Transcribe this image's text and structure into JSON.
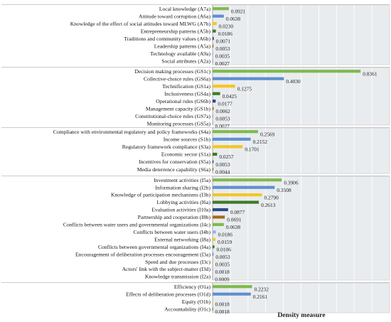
{
  "chart_data": {
    "type": "bar",
    "orientation": "horizontal",
    "xlabel": "Density measure",
    "xlim": [
      0,
      1
    ],
    "grid": true,
    "group_panels": [
      {
        "items": [
          {
            "label": "Local knowledge (A7a)",
            "value": 0.0921,
            "value_label": "0.0921",
            "color": "#7fba4e"
          },
          {
            "label": "Attitude toward corruption (A6a)",
            "value": 0.0638,
            "value_label": "0.0638",
            "color": "#5f8fd0"
          },
          {
            "label": "Knowledge of the effect of social attitudes toward MLWG (A7b)",
            "value": 0.023,
            "value_label": "0.0230",
            "color": "#f3c623"
          },
          {
            "label": "Entrepreneurship patterns (A5b)",
            "value": 0.0186,
            "value_label": "0.0186",
            "color": "#3e7b26"
          },
          {
            "label": "Traditions and community values (A6b)",
            "value": 0.0071,
            "value_label": "0.0071",
            "color": "#2b4a86"
          },
          {
            "label": "Leadership patterns (A5a)",
            "value": 0.0053,
            "value_label": "0.0053",
            "color": "#a76a1e"
          },
          {
            "label": "Technology available (A9a)",
            "value": 0.0035,
            "value_label": "0.0035",
            "color": "#b5b5b5"
          },
          {
            "label": "Social attributes (A2a)",
            "value": 0.0027,
            "value_label": "0.0027",
            "color": "#8fb3de"
          }
        ]
      },
      {
        "items": [
          {
            "label": "Decision making processes (GS1c)",
            "value": 0.8361,
            "value_label": "0.8361",
            "color": "#7fba4e"
          },
          {
            "label": "Collective-choice rules (GS6a)",
            "value": 0.403,
            "value_label": "0.4030",
            "color": "#5f8fd0"
          },
          {
            "label": "Technification (GS1a)",
            "value": 0.1275,
            "value_label": "0.1275",
            "color": "#f3c623"
          },
          {
            "label": "Inclusiveness (GS4a)",
            "value": 0.0425,
            "value_label": "0.0425",
            "color": "#3e7b26"
          },
          {
            "label": "Operational rules (GS6b)",
            "value": 0.0177,
            "value_label": "0.0177",
            "color": "#2b4a86"
          },
          {
            "label": "Management capacity (GS1b)",
            "value": 0.0062,
            "value_label": "0.0062",
            "color": "#a76a1e"
          },
          {
            "label": "Constitutional-choice rules (GS7a)",
            "value": 0.0053,
            "value_label": "0.0053",
            "color": "#b5b5b5"
          },
          {
            "label": "Monitoring processes (GS5a)",
            "value": 0.0027,
            "value_label": "0.0027",
            "color": "#8fb3de"
          }
        ]
      },
      {
        "items": [
          {
            "label": "Compliance with environmental regulatory and policy frameworks (S4a)",
            "value": 0.2569,
            "value_label": "0.2569",
            "color": "#7fba4e"
          },
          {
            "label": "Income sources (S1b)",
            "value": 0.2152,
            "value_label": "0.2152",
            "color": "#5f8fd0"
          },
          {
            "label": "Regulatory framework compliance (S3a)",
            "value": 0.1701,
            "value_label": "0.1701",
            "color": "#f3c623"
          },
          {
            "label": "Economic sector (S1a)",
            "value": 0.0257,
            "value_label": "0.0257",
            "color": "#3e7b26"
          },
          {
            "label": "Incentives for conservation (S5a)",
            "value": 0.0053,
            "value_label": "0.0053",
            "color": "#2b4a86"
          },
          {
            "label": "Media deterrence capability (S6a)",
            "value": 0.0044,
            "value_label": "0.0044",
            "color": "#a76a1e"
          }
        ]
      },
      {
        "items": [
          {
            "label": "Investment activities (I5a)",
            "value": 0.3906,
            "value_label": "0.3906",
            "color": "#7fba4e"
          },
          {
            "label": "Information sharing (I2b)",
            "value": 0.3508,
            "value_label": "0.3508",
            "color": "#5f8fd0"
          },
          {
            "label": "Knowledge of participation mechanisms (I3b)",
            "value": 0.279,
            "value_label": "0.2790",
            "color": "#f3c623"
          },
          {
            "label": "Lobbying activities (I6a)",
            "value": 0.2613,
            "value_label": "0.2613",
            "color": "#3e7b26"
          },
          {
            "label": "Evaluation activities (I10a)",
            "value": 0.0877,
            "value_label": "0.0877",
            "color": "#2b4a86"
          },
          {
            "label": "Partnership and cooperation (I8b)",
            "value": 0.0691,
            "value_label": "0.0691",
            "color": "#a76a1e"
          },
          {
            "label": "Conflicts between water users and governmental organizations (I4c)",
            "value": 0.0638,
            "value_label": "0.0638",
            "color": "#7fba4e"
          },
          {
            "label": "Conflicts between water users (I4b)",
            "value": 0.0186,
            "value_label": "0.0186",
            "color": "#8fb3de"
          },
          {
            "label": "External networking (I8a)",
            "value": 0.0159,
            "value_label": "0.0159",
            "color": "#f3c623"
          },
          {
            "label": "Conflicts between governmental organizations (I4a)",
            "value": 0.0106,
            "value_label": "0.0106",
            "color": "#3e7b26"
          },
          {
            "label": "Encouragement of deliberation processes encouragement (I3a)",
            "value": 0.0053,
            "value_label": "0.0053",
            "color": "#5f8fd0"
          },
          {
            "label": "Speed and due processes (I3c)",
            "value": 0.0035,
            "value_label": "0.0035",
            "color": "#f3c623"
          },
          {
            "label": "Actors' link with the subject-matter (I3d)",
            "value": 0.0018,
            "value_label": "0.0018",
            "color": "#8fb3de"
          },
          {
            "label": "Knowledge transmission (I2a)",
            "value": 0.0009,
            "value_label": "0.0009",
            "color": "#b5b5b5"
          }
        ]
      },
      {
        "items": [
          {
            "label": "Efficiency (O1a)",
            "value": 0.2232,
            "value_label": "0.2232",
            "color": "#7fba4e"
          },
          {
            "label": "Effects of deliberation processes (O1d)",
            "value": 0.2161,
            "value_label": "0.2161",
            "color": "#5f8fd0"
          },
          {
            "label": "Equity (O1b)",
            "value": 0.0018,
            "value_label": "0.0018",
            "color": "#f3c623"
          },
          {
            "label": "Accountability (O1c)",
            "value": 0.0018,
            "value_label": "0.0018",
            "color": "#3e7b26"
          }
        ]
      }
    ]
  }
}
